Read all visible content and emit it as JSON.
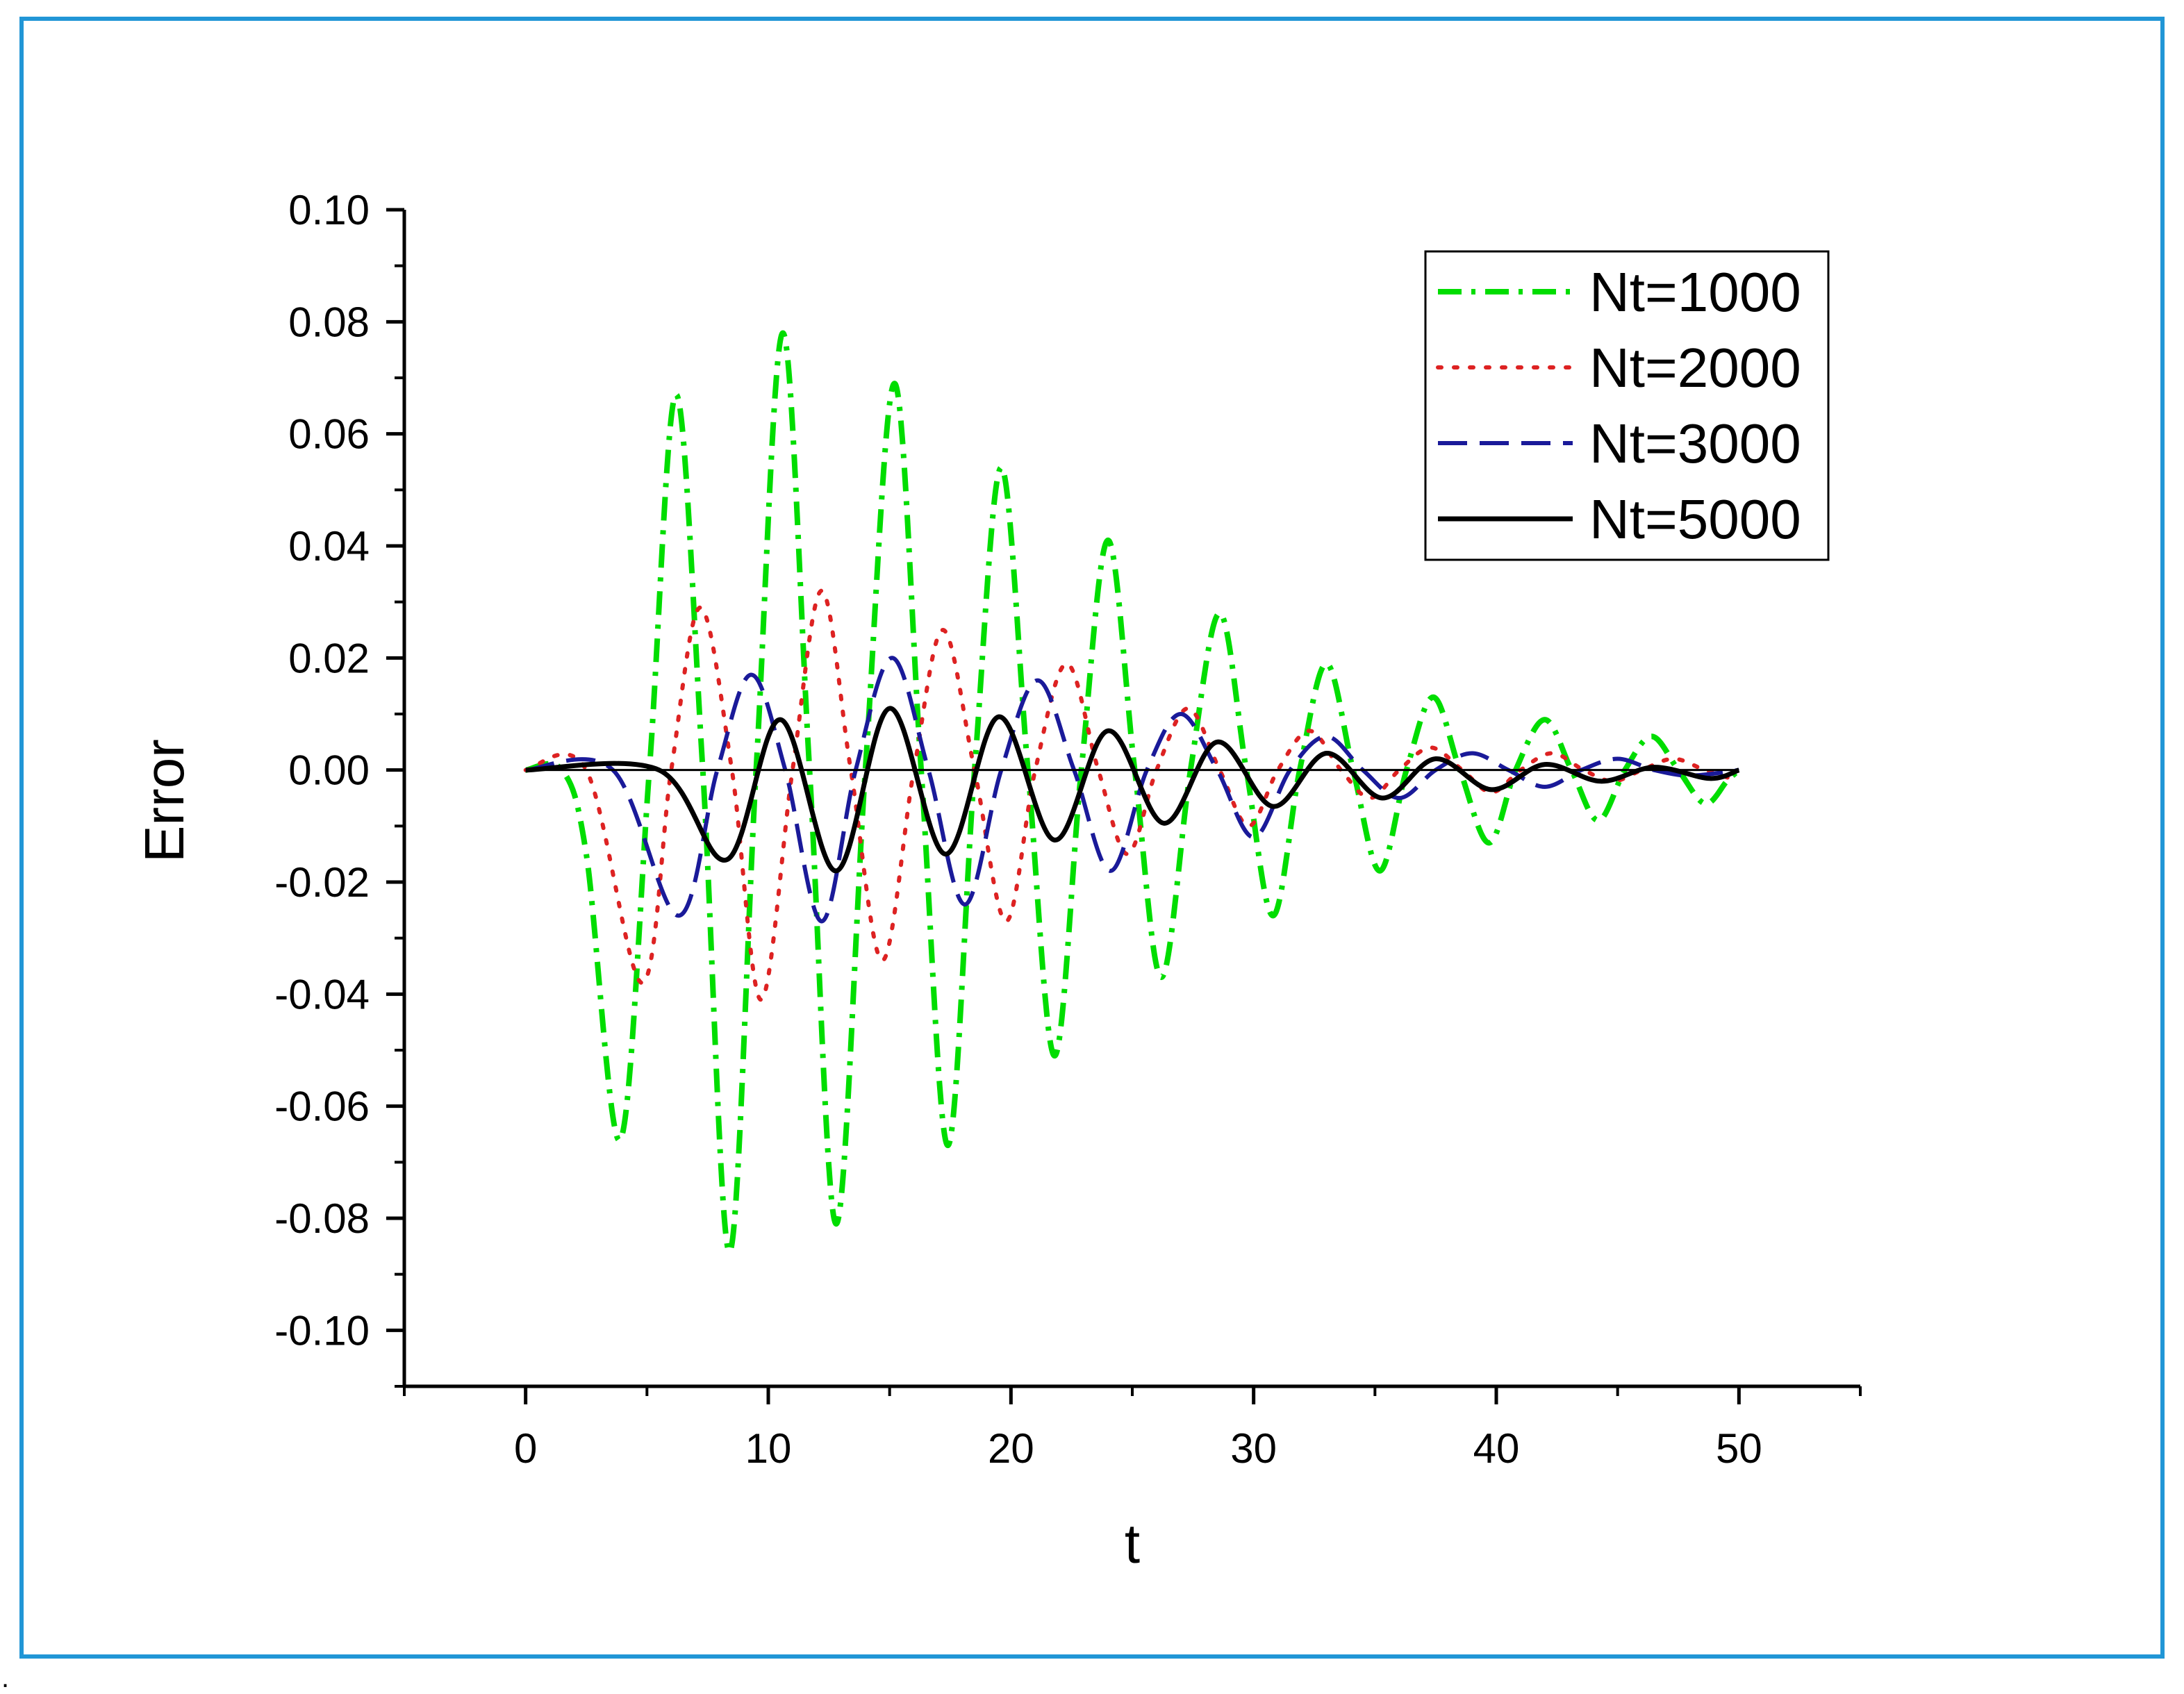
{
  "chart_data": {
    "type": "line",
    "xlabel": "t",
    "ylabel": "Error",
    "xlim": [
      -5,
      55
    ],
    "ylim": [
      -0.11,
      0.1
    ],
    "xticks": [
      "0",
      "10",
      "20",
      "30",
      "40",
      "50"
    ],
    "yticks": [
      "0.10",
      "0.08",
      "0.06",
      "0.04",
      "0.02",
      "0.00",
      "-0.02",
      "-0.04",
      "-0.06",
      "-0.08",
      "-0.10"
    ],
    "legend_position": "top-right",
    "grid": false,
    "series": [
      {
        "name": "Nt=1000",
        "color": "#00dd00",
        "dash": "dashdot",
        "x": [
          0,
          1.5,
          2.5,
          3.9,
          5.1,
          6.2,
          7.3,
          8.4,
          9.5,
          10.6,
          11.7,
          12.8,
          14.0,
          15.2,
          16.3,
          17.4,
          18.5,
          19.6,
          20.7,
          21.8,
          22.9,
          24.0,
          25.1,
          26.2,
          27.4,
          28.6,
          29.7,
          30.8,
          31.9,
          33.0,
          34.1,
          35.2,
          36.3,
          37.4,
          38.5,
          39.7,
          40.8,
          42.0,
          43.1,
          44.2,
          45.3,
          46.4,
          47.5,
          48.6,
          49.5,
          50
        ],
        "y": [
          0,
          0,
          -0.015,
          -0.066,
          0,
          0.067,
          0,
          -0.086,
          0,
          0.078,
          0,
          -0.081,
          0,
          0.069,
          0,
          -0.067,
          0,
          0.054,
          0,
          -0.051,
          0,
          0.041,
          0,
          -0.037,
          0,
          0.028,
          0,
          -0.026,
          0,
          0.019,
          0,
          -0.018,
          0,
          0.013,
          0,
          -0.013,
          0,
          0.009,
          0,
          -0.009,
          0,
          0.006,
          0,
          -0.006,
          -0.002,
          0
        ]
      },
      {
        "name": "Nt=2000",
        "color": "#dd2222",
        "dash": "dotted",
        "x": [
          0,
          2.5,
          4.8,
          6.0,
          7.2,
          8.5,
          9.7,
          11.0,
          12.2,
          13.4,
          14.7,
          16.0,
          17.2,
          18.5,
          19.8,
          21.0,
          22.3,
          23.6,
          24.8,
          26.0,
          27.3,
          28.6,
          29.8,
          31.0,
          32.3,
          33.6,
          34.8,
          36.0,
          37.3,
          38.6,
          39.8,
          41.0,
          42.3,
          43.6,
          44.8,
          46.0,
          47.3,
          48.6,
          50
        ],
        "y": [
          0,
          0,
          -0.038,
          0,
          0.029,
          0,
          -0.041,
          0,
          0.032,
          0,
          -0.034,
          0,
          0.025,
          0,
          -0.027,
          0,
          0.019,
          0,
          -0.015,
          0,
          0.011,
          0,
          -0.01,
          0,
          0.007,
          0,
          -0.005,
          0,
          0.004,
          0,
          -0.004,
          0,
          0.003,
          0,
          -0.002,
          0,
          0.002,
          0,
          -0.002
        ]
      },
      {
        "name": "Nt=3000",
        "color": "#1a1a99",
        "dash": "dashed",
        "x": [
          0,
          3.6,
          6.3,
          7.9,
          9.3,
          10.7,
          12.2,
          13.6,
          15.1,
          16.6,
          18.1,
          19.6,
          21.1,
          22.6,
          24.1,
          25.6,
          27.0,
          28.5,
          30.0,
          31.5,
          33.0,
          34.5,
          36.0,
          37.5,
          39.0,
          40.5,
          42.0,
          43.5,
          45.0,
          46.5,
          48.0,
          50
        ],
        "y": [
          0,
          0,
          -0.026,
          0,
          0.017,
          0,
          -0.027,
          0,
          0.02,
          0,
          -0.024,
          0,
          0.016,
          0,
          -0.018,
          0,
          0.01,
          0,
          -0.012,
          0,
          0.006,
          0,
          -0.005,
          0,
          0.003,
          0,
          -0.003,
          0,
          0.002,
          0,
          -0.001,
          0
        ]
      },
      {
        "name": "Nt=5000",
        "color": "#000000",
        "dash": "solid",
        "x": [
          0,
          5.5,
          8.3,
          10.5,
          12.8,
          15.0,
          17.3,
          19.5,
          21.8,
          24.0,
          26.3,
          28.5,
          30.8,
          33.0,
          35.3,
          37.5,
          39.8,
          42.0,
          44.3,
          46.5,
          48.8,
          50
        ],
        "y": [
          0,
          0,
          -0.016,
          0.009,
          -0.018,
          0.011,
          -0.015,
          0.0095,
          -0.0125,
          0.007,
          -0.0095,
          0.005,
          -0.0065,
          0.003,
          -0.005,
          0.002,
          -0.0035,
          0.001,
          -0.002,
          0.0005,
          -0.0015,
          0
        ]
      }
    ]
  }
}
